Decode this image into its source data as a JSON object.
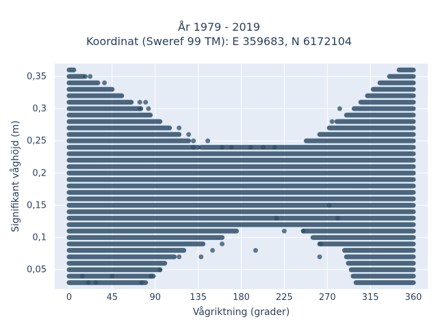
{
  "chart_data": {
    "type": "scatter",
    "title_line1": "År 1979 - 2019",
    "title_line2": "Koordinat (Sweref 99 TM): E 359683, N 6172104",
    "xlabel": "Vågriktning (grader)",
    "ylabel": "Signifikant våghöjd (m)",
    "xlim": [
      -15,
      375
    ],
    "ylim": [
      0.02,
      0.37
    ],
    "xticks": [
      0,
      45,
      90,
      135,
      180,
      225,
      270,
      315,
      360
    ],
    "xtick_labels": [
      "0",
      "45",
      "90",
      "135",
      "180",
      "225",
      "270",
      "315",
      "360"
    ],
    "yticks": [
      0.05,
      0.1,
      0.15,
      0.2,
      0.25,
      0.3,
      0.35
    ],
    "ytick_labels": [
      "0,05",
      "0,1",
      "0,15",
      "0,2",
      "0,25",
      "0,3",
      "0,35"
    ],
    "marker_color": "#2f4f68",
    "plot_bg": "#e5ecf6",
    "grid": true,
    "y_levels_step": 0.01,
    "levels": [
      {
        "y": 0.03,
        "xmin": 0,
        "xmax": 80,
        "xmin2": 300,
        "xmax2": 360
      },
      {
        "y": 0.04,
        "xmin": 0,
        "xmax": 88,
        "xmin2": 297,
        "xmax2": 360
      },
      {
        "y": 0.05,
        "xmin": 0,
        "xmax": 95,
        "xmin2": 295,
        "xmax2": 360
      },
      {
        "y": 0.06,
        "xmin": 0,
        "xmax": 100,
        "xmin2": 292,
        "xmax2": 360
      },
      {
        "y": 0.07,
        "xmin": 0,
        "xmax": 110,
        "xmin2": 290,
        "xmax2": 360
      },
      {
        "y": 0.08,
        "xmin": 0,
        "xmax": 120,
        "xmin2": 288,
        "xmax2": 360
      },
      {
        "y": 0.09,
        "xmin": 0,
        "xmax": 140,
        "xmin2": 262,
        "xmax2": 360
      },
      {
        "y": 0.1,
        "xmin": 0,
        "xmax": 160,
        "xmin2": 255,
        "xmax2": 360
      },
      {
        "y": 0.11,
        "xmin": 0,
        "xmax": 175,
        "xmin2": 245,
        "xmax2": 360
      },
      {
        "y": 0.12,
        "xmin": 0,
        "xmax": 360
      },
      {
        "y": 0.13,
        "xmin": 0,
        "xmax": 360
      },
      {
        "y": 0.14,
        "xmin": 0,
        "xmax": 360
      },
      {
        "y": 0.15,
        "xmin": 0,
        "xmax": 360
      },
      {
        "y": 0.16,
        "xmin": 0,
        "xmax": 360
      },
      {
        "y": 0.17,
        "xmin": 0,
        "xmax": 360
      },
      {
        "y": 0.18,
        "xmin": 0,
        "xmax": 360
      },
      {
        "y": 0.19,
        "xmin": 0,
        "xmax": 360
      },
      {
        "y": 0.2,
        "xmin": 0,
        "xmax": 360
      },
      {
        "y": 0.21,
        "xmin": 0,
        "xmax": 360
      },
      {
        "y": 0.22,
        "xmin": 0,
        "xmax": 360
      },
      {
        "y": 0.23,
        "xmin": 0,
        "xmax": 360
      },
      {
        "y": 0.24,
        "xmin": 0,
        "xmax": 135,
        "xmin2": 138,
        "xmax2": 360
      },
      {
        "y": 0.25,
        "xmin": 0,
        "xmax": 125,
        "xmin2": 248,
        "xmax2": 360
      },
      {
        "y": 0.26,
        "xmin": 0,
        "xmax": 115,
        "xmin2": 262,
        "xmax2": 360
      },
      {
        "y": 0.27,
        "xmin": 0,
        "xmax": 105,
        "xmin2": 272,
        "xmax2": 360
      },
      {
        "y": 0.28,
        "xmin": 0,
        "xmax": 95,
        "xmin2": 280,
        "xmax2": 360
      },
      {
        "y": 0.29,
        "xmin": 0,
        "xmax": 85,
        "xmin2": 290,
        "xmax2": 360
      },
      {
        "y": 0.3,
        "xmin": 0,
        "xmax": 75,
        "xmin2": 298,
        "xmax2": 360
      },
      {
        "y": 0.31,
        "xmin": 0,
        "xmax": 65,
        "xmin2": 305,
        "xmax2": 360
      },
      {
        "y": 0.32,
        "xmin": 0,
        "xmax": 55,
        "xmin2": 312,
        "xmax2": 360
      },
      {
        "y": 0.33,
        "xmin": 0,
        "xmax": 45,
        "xmin2": 318,
        "xmax2": 360
      },
      {
        "y": 0.34,
        "xmin": 0,
        "xmax": 30,
        "xmin2": 325,
        "xmax2": 360
      },
      {
        "y": 0.35,
        "xmin": 0,
        "xmax": 15,
        "xmin2": 335,
        "xmax2": 360
      },
      {
        "y": 0.36,
        "xmin": 0,
        "xmax": 5,
        "xmin2": 345,
        "xmax2": 360
      }
    ],
    "outliers": [
      {
        "x": 17,
        "y": 0.35
      },
      {
        "x": 22,
        "y": 0.35
      },
      {
        "x": 37,
        "y": 0.34
      },
      {
        "x": 74,
        "y": 0.31
      },
      {
        "x": 80,
        "y": 0.31
      },
      {
        "x": 74,
        "y": 0.3
      },
      {
        "x": 83,
        "y": 0.3
      },
      {
        "x": 125,
        "y": 0.26
      },
      {
        "x": 130,
        "y": 0.25
      },
      {
        "x": 145,
        "y": 0.25
      },
      {
        "x": 160,
        "y": 0.24
      },
      {
        "x": 170,
        "y": 0.24
      },
      {
        "x": 190,
        "y": 0.24
      },
      {
        "x": 203,
        "y": 0.24
      },
      {
        "x": 215,
        "y": 0.24
      },
      {
        "x": 283,
        "y": 0.3
      },
      {
        "x": 275,
        "y": 0.28
      },
      {
        "x": 115,
        "y": 0.27
      },
      {
        "x": 130,
        "y": 0.24
      },
      {
        "x": 150,
        "y": 0.08
      },
      {
        "x": 160,
        "y": 0.09
      },
      {
        "x": 195,
        "y": 0.08
      },
      {
        "x": 138,
        "y": 0.07
      },
      {
        "x": 115,
        "y": 0.07
      },
      {
        "x": 95,
        "y": 0.05
      },
      {
        "x": 86,
        "y": 0.04
      },
      {
        "x": 217,
        "y": 0.13
      },
      {
        "x": 225,
        "y": 0.11
      },
      {
        "x": 245,
        "y": 0.11
      },
      {
        "x": 262,
        "y": 0.07
      },
      {
        "x": 263,
        "y": 0.09
      },
      {
        "x": 272,
        "y": 0.15
      },
      {
        "x": 281,
        "y": 0.13
      },
      {
        "x": 14,
        "y": 0.04
      },
      {
        "x": 28,
        "y": 0.03
      },
      {
        "x": 45,
        "y": 0.04
      },
      {
        "x": 76,
        "y": 0.03
      },
      {
        "x": 20,
        "y": 0.03
      }
    ]
  }
}
